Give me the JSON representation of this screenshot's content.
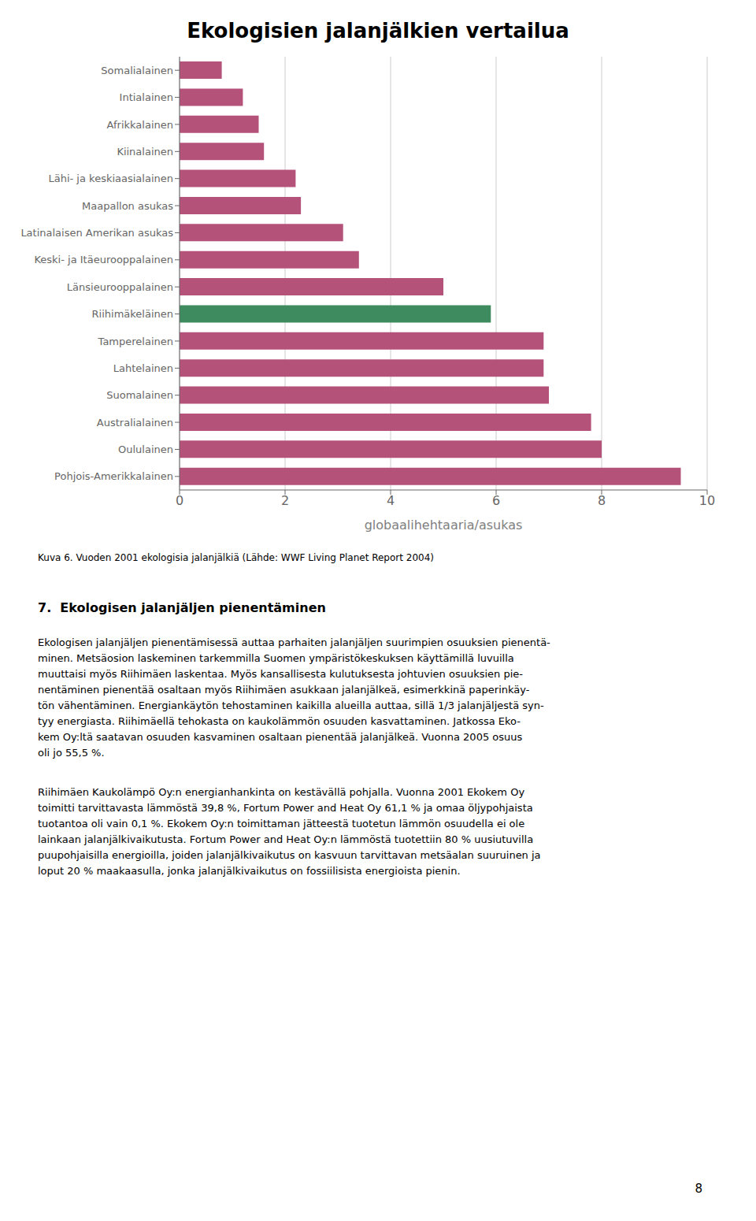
{
  "chart_data": {
    "type": "bar",
    "orientation": "horizontal",
    "title": "Ekologisien jalanjälkien vertailua",
    "categories": [
      "Pohjois-Amerikkalainen",
      "Oululainen",
      "Australialainen",
      "Suomalainen",
      "Lahtelainen",
      "Tamperelainen",
      "Riihimäkeläinen",
      "Länsieurooppalainen",
      "Keski- ja Itäeurooppalainen",
      "Latinalaisen Amerikan asukas",
      "Maapallon asukas",
      "Lähi- ja keskiaasialainen",
      "Kiinalainen",
      "Afrikkalainen",
      "Intialainen",
      "Somalialainen"
    ],
    "values": [
      9.5,
      8.0,
      7.8,
      7.0,
      6.9,
      6.9,
      5.9,
      5.0,
      3.4,
      3.1,
      2.3,
      2.2,
      1.6,
      1.5,
      1.2,
      0.8
    ],
    "colors": [
      "#b5527a",
      "#b5527a",
      "#b5527a",
      "#b5527a",
      "#b5527a",
      "#b5527a",
      "#3d8b5e",
      "#b5527a",
      "#b5527a",
      "#b5527a",
      "#b5527a",
      "#b5527a",
      "#b5527a",
      "#b5527a",
      "#b5527a",
      "#b5527a"
    ],
    "xlabel": "globaalihehtaaria/asukas",
    "xlim": [
      0,
      10
    ],
    "xticks": [
      0,
      2,
      4,
      6,
      8,
      10
    ],
    "grid": true
  },
  "caption": "Kuva 6. Vuoden 2001 ekologisia jalanjälkiä (Lähde: WWF Living Planet Report 2004)",
  "section_title": "7.  Ekologisen jalanjäljen pienentäminen",
  "body_text1_lines": [
    "Ekologisen jalanjäljen pienentämisessä auttaa parhaiten jalanjäljen suurimpien osuuksien pienentä-",
    "minen. Metsäosion laskeminen tarkemmilla Suomen ympäristökeskuksen käyttämillä luvuilla",
    "muuttaisi myös Riihimäen laskentaa. Myös kansallisesta kulutuksesta johtuvien osuuksien pie-",
    "nentäminen pienentää osaltaan myös Riihimäen asukkaan jalanjälkeä, esimerkkinä paperinkäy-",
    "tön vähentäminen. Energiankäytön tehostaminen kaikilla alueilla auttaa, sillä 1/3 jalanjäljestä syn-",
    "tyy energiasta. Riihimäellä tehokasta on kaukolämmön osuuden kasvattaminen. Jatkossa Eko-",
    "kem Oy:ltä saatavan osuuden kasvaminen osaltaan pienentää jalanjälkeä. Vuonna 2005 osuus",
    "oli jo 55,5 %."
  ],
  "body_text2_lines": [
    "Riihimäen Kaukolämpö Oy:n energianhankinta on kestävällä pohjalla. Vuonna 2001 Ekokem Oy",
    "toimitti tarvittavasta lämmöstä 39,8 %, Fortum Power and Heat Oy 61,1 % ja omaa öljypohjaista",
    "tuotantoa oli vain 0,1 %. Ekokem Oy:n toimittaman jätteestä tuotetun lämmön osuudella ei ole",
    "lainkaan jalanjälkivaikutusta. Fortum Power and Heat Oy:n lämmöstä tuotettiin 80 % uusiutuvilla",
    "puupohjaisilla energioilla, joiden jalanjälkivaikutus on kasvuun tarvittavan metsäalan suuruinen ja",
    "loput 20 % maakaasulla, jonka jalanjälkivaikutus on fossiilisista energioista pienin."
  ],
  "page_number": "8"
}
